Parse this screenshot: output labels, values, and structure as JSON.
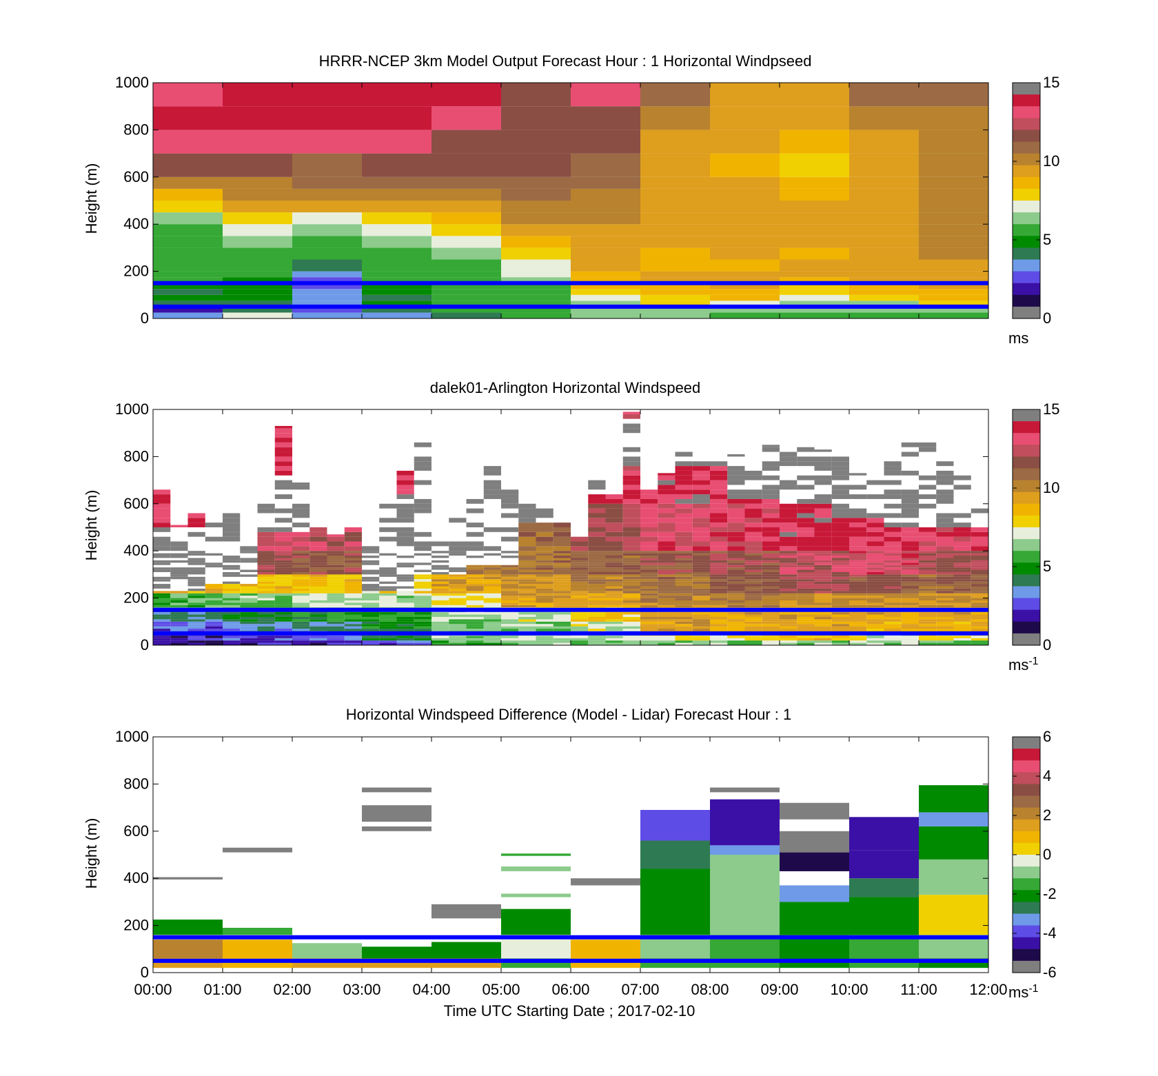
{
  "colormaps": {
    "speed": [
      "#7f7f7f",
      "#1e0a4a",
      "#3b10a6",
      "#5e4ce6",
      "#6e9ae8",
      "#2e7a52",
      "#008a00",
      "#35a835",
      "#8ccb8c",
      "#e8eedc",
      "#f0d000",
      "#f0b400",
      "#de9e1e",
      "#b8822e",
      "#9c6a44",
      "#8a4e44",
      "#c04e5c",
      "#e84e72",
      "#c81838",
      "#7f7f7f"
    ],
    "diff": [
      "#7f7f7f",
      "#1e0a4a",
      "#3b10a6",
      "#5e4ce6",
      "#6e9ae8",
      "#2e7a52",
      "#008a00",
      "#35a835",
      "#8ccb8c",
      "#e8eedc",
      "#f0d000",
      "#f0b400",
      "#de9e1e",
      "#b8822e",
      "#9c6a44",
      "#8a4e44",
      "#c04e5c",
      "#e84e72",
      "#c81838",
      "#7f7f7f"
    ]
  },
  "marker_lines": {
    "heights_m": [
      150,
      50
    ],
    "color": "#0000ff"
  },
  "chart_data": [
    {
      "type": "heatmap",
      "title": "HRRR-NCEP 3km Model Output   Forecast Hour : 1 Horizontal Windpseed",
      "ylabel": "Height (m)",
      "ylim": [
        0,
        1000
      ],
      "yticks": [
        "0",
        "200",
        "400",
        "600",
        "800",
        "1000"
      ],
      "xlim_hours": [
        0,
        12
      ],
      "xticks": [],
      "colorbar": {
        "range": [
          0,
          15
        ],
        "ticks": [
          "0",
          "5",
          "10",
          "15"
        ],
        "unit": "ms",
        "unit_sup": ""
      },
      "levels_m": [
        0,
        25,
        50,
        75,
        100,
        125,
        150,
        175,
        200,
        250,
        300,
        350,
        400,
        450,
        500,
        550,
        600,
        700,
        800,
        900,
        1000
      ],
      "columns": [
        {
          "start_hour": 0,
          "values": [
            2.5,
            1.5,
            3.5,
            4.2,
            3.8,
            4.3,
            5.0,
            5.5,
            5.3,
            5.2,
            5.0,
            5.8,
            6.5,
            8.0,
            9.0,
            10.0,
            12.0,
            13.5,
            14.2,
            14.0
          ]
        },
        {
          "start_hour": 1,
          "values": [
            7.0,
            3.5,
            4.0,
            4.2,
            4.2,
            4.2,
            4.8,
            5.2,
            5.3,
            5.0,
            6.0,
            7.0,
            8.0,
            9.5,
            10.0,
            10.5,
            12.0,
            13.5,
            14.2,
            14.6
          ]
        },
        {
          "start_hour": 2,
          "values": [
            2.5,
            1.8,
            2.5,
            3.0,
            2.5,
            2.0,
            2.2,
            3.3,
            4.0,
            5.2,
            5.5,
            6.0,
            7.0,
            9.5,
            10.5,
            11.0,
            11.5,
            13.8,
            14.3,
            15.0
          ]
        },
        {
          "start_hour": 3,
          "values": [
            3.0,
            3.5,
            4.2,
            4.0,
            4.2,
            4.5,
            5.0,
            5.3,
            5.5,
            5.4,
            6.5,
            7.2,
            8.0,
            9.8,
            10.3,
            11.0,
            12.0,
            13.5,
            14.2,
            14.6
          ]
        },
        {
          "start_hour": 4,
          "values": [
            4.0,
            5.0,
            5.4,
            5.3,
            5.2,
            5.5,
            5.5,
            5.6,
            5.5,
            6.0,
            6.8,
            7.5,
            8.5,
            9.5,
            10.5,
            11.5,
            11.8,
            12.0,
            13.9,
            14.6
          ]
        },
        {
          "start_hour": 5,
          "values": [
            5.0,
            5.4,
            5.5,
            5.2,
            5.0,
            5.6,
            6.0,
            6.8,
            7.3,
            8.0,
            9.0,
            9.5,
            10.0,
            10.5,
            11.5,
            11.5,
            11.8,
            12.0,
            12.0,
            12.0
          ]
        },
        {
          "start_hour": 6,
          "values": [
            6.0,
            6.2,
            6.5,
            6.8,
            7.5,
            8.5,
            8.8,
            9.0,
            9.3,
            9.5,
            9.5,
            9.6,
            10.0,
            10.5,
            10.5,
            11.0,
            11.5,
            11.8,
            12.0,
            13.5
          ]
        },
        {
          "start_hour": 7,
          "values": [
            6.0,
            6.5,
            7.5,
            7.5,
            8.5,
            9.0,
            9.3,
            9.2,
            9.0,
            9.0,
            9.5,
            9.5,
            9.8,
            9.7,
            9.6,
            9.6,
            9.5,
            9.6,
            10.0,
            11.0
          ]
        },
        {
          "start_hour": 8,
          "values": [
            5.5,
            6.0,
            7.0,
            8.5,
            9.0,
            9.5,
            9.4,
            9.2,
            9.0,
            9.2,
            9.6,
            9.5,
            9.8,
            9.6,
            9.5,
            9.3,
            9.1,
            9.2,
            9.5,
            9.8
          ]
        },
        {
          "start_hour": 9,
          "values": [
            5.5,
            6.0,
            6.5,
            7.0,
            7.5,
            7.8,
            9.0,
            9.3,
            9.5,
            9.0,
            9.2,
            9.4,
            9.5,
            9.4,
            9.0,
            8.5,
            8.2,
            9.0,
            9.5,
            9.8
          ]
        },
        {
          "start_hour": 10,
          "values": [
            5.5,
            6.0,
            6.5,
            7.5,
            8.5,
            9.0,
            9.2,
            9.4,
            9.5,
            9.6,
            9.6,
            9.6,
            9.6,
            9.6,
            9.6,
            9.6,
            9.5,
            9.7,
            10.5,
            11.0
          ]
        },
        {
          "start_hour": 11,
          "values": [
            5.5,
            6.5,
            7.5,
            8.5,
            9.0,
            9.5,
            9.5,
            9.6,
            9.8,
            10.0,
            10.2,
            10.5,
            10.6,
            10.8,
            10.8,
            10.5,
            10.2,
            10.0,
            10.5,
            11.0
          ]
        }
      ]
    },
    {
      "type": "heatmap",
      "title": "dalek01-Arlington  Horizontal Windspeed",
      "ylabel": "Height (m)",
      "ylim": [
        0,
        1000
      ],
      "yticks": [
        "0",
        "200",
        "400",
        "600",
        "800",
        "1000"
      ],
      "xlim_hours": [
        0,
        12
      ],
      "xticks": [],
      "colorbar": {
        "range": [
          0,
          15
        ],
        "ticks": [
          "0",
          "5",
          "10",
          "15"
        ],
        "unit": "ms",
        "unit_sup": "-1"
      },
      "profiles_per_hour": 4,
      "profile_top_m": [
        660,
        510,
        560,
        520,
        600,
        500,
        650,
        930,
        690,
        520,
        470,
        530,
        420,
        600,
        740,
        870,
        470,
        560,
        660,
        760,
        680,
        620,
        580,
        520,
        460,
        720,
        640,
        990,
        660,
        730,
        820,
        780,
        800,
        810,
        800,
        850,
        860,
        840,
        830,
        800,
        730,
        700,
        860,
        860,
        870,
        800,
        760,
        720
      ],
      "gap_bands_m": [
        [
          30,
          500
        ],
        [
          260,
          700
        ],
        [
          470,
          720
        ],
        [
          500,
          800
        ],
        [
          230,
          640
        ],
        [
          300,
          900
        ],
        [
          340,
          1000
        ],
        [
          520,
          1000
        ],
        [
          640,
          1000
        ],
        [
          760,
          950
        ],
        [
          760,
          950
        ],
        [
          620,
          1000
        ],
        [
          600,
          1000
        ],
        [
          540,
          1000
        ],
        [
          500,
          1000
        ],
        [
          500,
          1000
        ],
        [
          500,
          1000
        ]
      ],
      "layers": [
        {
          "top_m": 20,
          "by_hour": [
            1.0,
            1.5,
            1.2,
            2.0,
            5.5,
            6.0,
            6.0,
            6.0,
            6.2,
            6.0,
            6.5,
            5.8
          ]
        },
        {
          "top_m": 50,
          "by_hour": [
            1.5,
            2.0,
            2.5,
            4.0,
            6.5,
            6.5,
            7.0,
            7.5,
            7.5,
            8.5,
            7.0,
            7.5
          ]
        },
        {
          "top_m": 100,
          "by_hour": [
            2.3,
            3.0,
            3.5,
            4.5,
            5.8,
            6.0,
            7.0,
            9.5,
            9.2,
            9.3,
            9.0,
            9.0
          ]
        },
        {
          "top_m": 160,
          "by_hour": [
            3.5,
            4.2,
            4.8,
            5.0,
            6.5,
            7.0,
            8.2,
            9.8,
            9.5,
            9.3,
            9.3,
            9.5
          ]
        },
        {
          "top_m": 220,
          "by_hour": [
            5.5,
            6.0,
            6.5,
            6.5,
            7.5,
            9.5,
            9.5,
            10.5,
            10.5,
            10.0,
            10.0,
            10.0
          ]
        },
        {
          "top_m": 300,
          "by_hour": [
            9.0,
            8.5,
            8.5,
            8.0,
            9.5,
            10.0,
            10.5,
            11.0,
            11.8,
            12.5,
            12.0,
            11.5
          ]
        },
        {
          "top_m": 400,
          "by_hour": [
            13.0,
            12.5,
            12.0,
            11.0,
            10.5,
            11.0,
            11.5,
            12.0,
            12.2,
            13.0,
            13.5,
            12.5
          ]
        },
        {
          "top_m": 600,
          "by_hour": [
            14.0,
            13.5,
            13.0,
            12.5,
            11.5,
            11.5,
            12.5,
            13.5,
            13.8,
            14.3,
            14.0,
            13.8
          ]
        },
        {
          "top_m": 1000,
          "by_hour": [
            14.5,
            14.5,
            14.2,
            14.0,
            13.5,
            13.5,
            14.0,
            14.5,
            14.2,
            14.5,
            14.5,
            14.5
          ]
        }
      ]
    },
    {
      "type": "heatmap",
      "title": "Horizontal Windspeed Difference (Model - Lidar) Forecast Hour : 1",
      "xlabel": "Time UTC  Starting Date ; 2017-02-10",
      "ylabel": "Height (m)",
      "ylim": [
        0,
        1000
      ],
      "yticks": [
        "0",
        "200",
        "400",
        "600",
        "800",
        "1000"
      ],
      "xlim_hours": [
        0,
        12
      ],
      "xticks": [
        "00:00",
        "01:00",
        "02:00",
        "03:00",
        "04:00",
        "05:00",
        "06:00",
        "07:00",
        "08:00",
        "09:00",
        "10:00",
        "11:00",
        "12:00"
      ],
      "colorbar": {
        "range": [
          -6,
          6
        ],
        "ticks": [
          "-6",
          "-4",
          "-2",
          "0",
          "2",
          "4",
          "6"
        ],
        "unit": "ms",
        "unit_sup": "-1"
      },
      "blocks": [
        {
          "hour": 0,
          "from_m": 20,
          "to_m": 60,
          "value": 1.6
        },
        {
          "hour": 0,
          "from_m": 60,
          "to_m": 140,
          "value": 2.3
        },
        {
          "hour": 0,
          "from_m": 160,
          "to_m": 225,
          "value": -2.3
        },
        {
          "hour": 0,
          "from_m": 395,
          "to_m": 405,
          "value": 6.2
        },
        {
          "hour": 1,
          "from_m": 20,
          "to_m": 60,
          "value": 1.0
        },
        {
          "hour": 1,
          "from_m": 60,
          "to_m": 140,
          "value": 1.3
        },
        {
          "hour": 1,
          "from_m": 160,
          "to_m": 190,
          "value": -1.5
        },
        {
          "hour": 1,
          "from_m": 510,
          "to_m": 530,
          "value": 6.2
        },
        {
          "hour": 2,
          "from_m": 20,
          "to_m": 60,
          "value": 1.8
        },
        {
          "hour": 2,
          "from_m": 60,
          "to_m": 125,
          "value": -1.2
        },
        {
          "hour": 3,
          "from_m": 20,
          "to_m": 60,
          "value": 1.7
        },
        {
          "hour": 3,
          "from_m": 60,
          "to_m": 110,
          "value": -2.2
        },
        {
          "hour": 3,
          "from_m": 600,
          "to_m": 620,
          "value": 6.2
        },
        {
          "hour": 3,
          "from_m": 640,
          "to_m": 710,
          "value": 6.2
        },
        {
          "hour": 3,
          "from_m": 765,
          "to_m": 785,
          "value": 6.2
        },
        {
          "hour": 4,
          "from_m": 20,
          "to_m": 60,
          "value": 1.5
        },
        {
          "hour": 4,
          "from_m": 60,
          "to_m": 130,
          "value": -2.5
        },
        {
          "hour": 4,
          "from_m": 230,
          "to_m": 290,
          "value": 6.2
        },
        {
          "hour": 5,
          "from_m": 20,
          "to_m": 60,
          "value": -1.5
        },
        {
          "hour": 5,
          "from_m": 60,
          "to_m": 140,
          "value": -0.6
        },
        {
          "hour": 5,
          "from_m": 160,
          "to_m": 270,
          "value": -2.4
        },
        {
          "hour": 5,
          "from_m": 320,
          "to_m": 335,
          "value": -1.2
        },
        {
          "hour": 5,
          "from_m": 430,
          "to_m": 450,
          "value": -0.8
        },
        {
          "hour": 5,
          "from_m": 495,
          "to_m": 505,
          "value": -2.0
        },
        {
          "hour": 6,
          "from_m": 20,
          "to_m": 60,
          "value": 1.0
        },
        {
          "hour": 6,
          "from_m": 60,
          "to_m": 140,
          "value": 0.8
        },
        {
          "hour": 6,
          "from_m": 370,
          "to_m": 400,
          "value": 6.2
        },
        {
          "hour": 7,
          "from_m": 20,
          "to_m": 60,
          "value": -1.5
        },
        {
          "hour": 7,
          "from_m": 60,
          "to_m": 160,
          "value": -0.7
        },
        {
          "hour": 7,
          "from_m": 160,
          "to_m": 440,
          "value": -2.2
        },
        {
          "hour": 7,
          "from_m": 440,
          "to_m": 560,
          "value": -3.0
        },
        {
          "hour": 7,
          "from_m": 560,
          "to_m": 690,
          "value": -4.5
        },
        {
          "hour": 8,
          "from_m": 20,
          "to_m": 60,
          "value": -2.0
        },
        {
          "hour": 8,
          "from_m": 60,
          "to_m": 160,
          "value": -1.6
        },
        {
          "hour": 8,
          "from_m": 160,
          "to_m": 500,
          "value": -1.0
        },
        {
          "hour": 8,
          "from_m": 500,
          "to_m": 540,
          "value": -3.5
        },
        {
          "hour": 8,
          "from_m": 540,
          "to_m": 735,
          "value": -5.0
        },
        {
          "hour": 8,
          "from_m": 765,
          "to_m": 785,
          "value": 6.2
        },
        {
          "hour": 9,
          "from_m": 20,
          "to_m": 60,
          "value": -2.4
        },
        {
          "hour": 9,
          "from_m": 60,
          "to_m": 160,
          "value": -2.2
        },
        {
          "hour": 9,
          "from_m": 160,
          "to_m": 300,
          "value": -2.4
        },
        {
          "hour": 9,
          "from_m": 300,
          "to_m": 370,
          "value": -4.0
        },
        {
          "hour": 9,
          "from_m": 430,
          "to_m": 510,
          "value": -5.5
        },
        {
          "hour": 9,
          "from_m": 510,
          "to_m": 600,
          "value": 6.2
        },
        {
          "hour": 9,
          "from_m": 650,
          "to_m": 720,
          "value": 6.2
        },
        {
          "hour": 10,
          "from_m": 20,
          "to_m": 60,
          "value": -2.0
        },
        {
          "hour": 10,
          "from_m": 60,
          "to_m": 160,
          "value": -1.4
        },
        {
          "hour": 10,
          "from_m": 160,
          "to_m": 320,
          "value": -2.5
        },
        {
          "hour": 10,
          "from_m": 320,
          "to_m": 400,
          "value": -3.2
        },
        {
          "hour": 10,
          "from_m": 400,
          "to_m": 520,
          "value": -5.2
        },
        {
          "hour": 10,
          "from_m": 520,
          "to_m": 660,
          "value": -4.8
        },
        {
          "hour": 11,
          "from_m": 20,
          "to_m": 60,
          "value": -2.4
        },
        {
          "hour": 11,
          "from_m": 60,
          "to_m": 160,
          "value": -0.7
        },
        {
          "hour": 11,
          "from_m": 160,
          "to_m": 330,
          "value": 0.5
        },
        {
          "hour": 11,
          "from_m": 330,
          "to_m": 480,
          "value": -1.0
        },
        {
          "hour": 11,
          "from_m": 480,
          "to_m": 620,
          "value": -2.5
        },
        {
          "hour": 11,
          "from_m": 620,
          "to_m": 680,
          "value": -3.4
        },
        {
          "hour": 11,
          "from_m": 680,
          "to_m": 795,
          "value": -2.3
        }
      ]
    }
  ]
}
